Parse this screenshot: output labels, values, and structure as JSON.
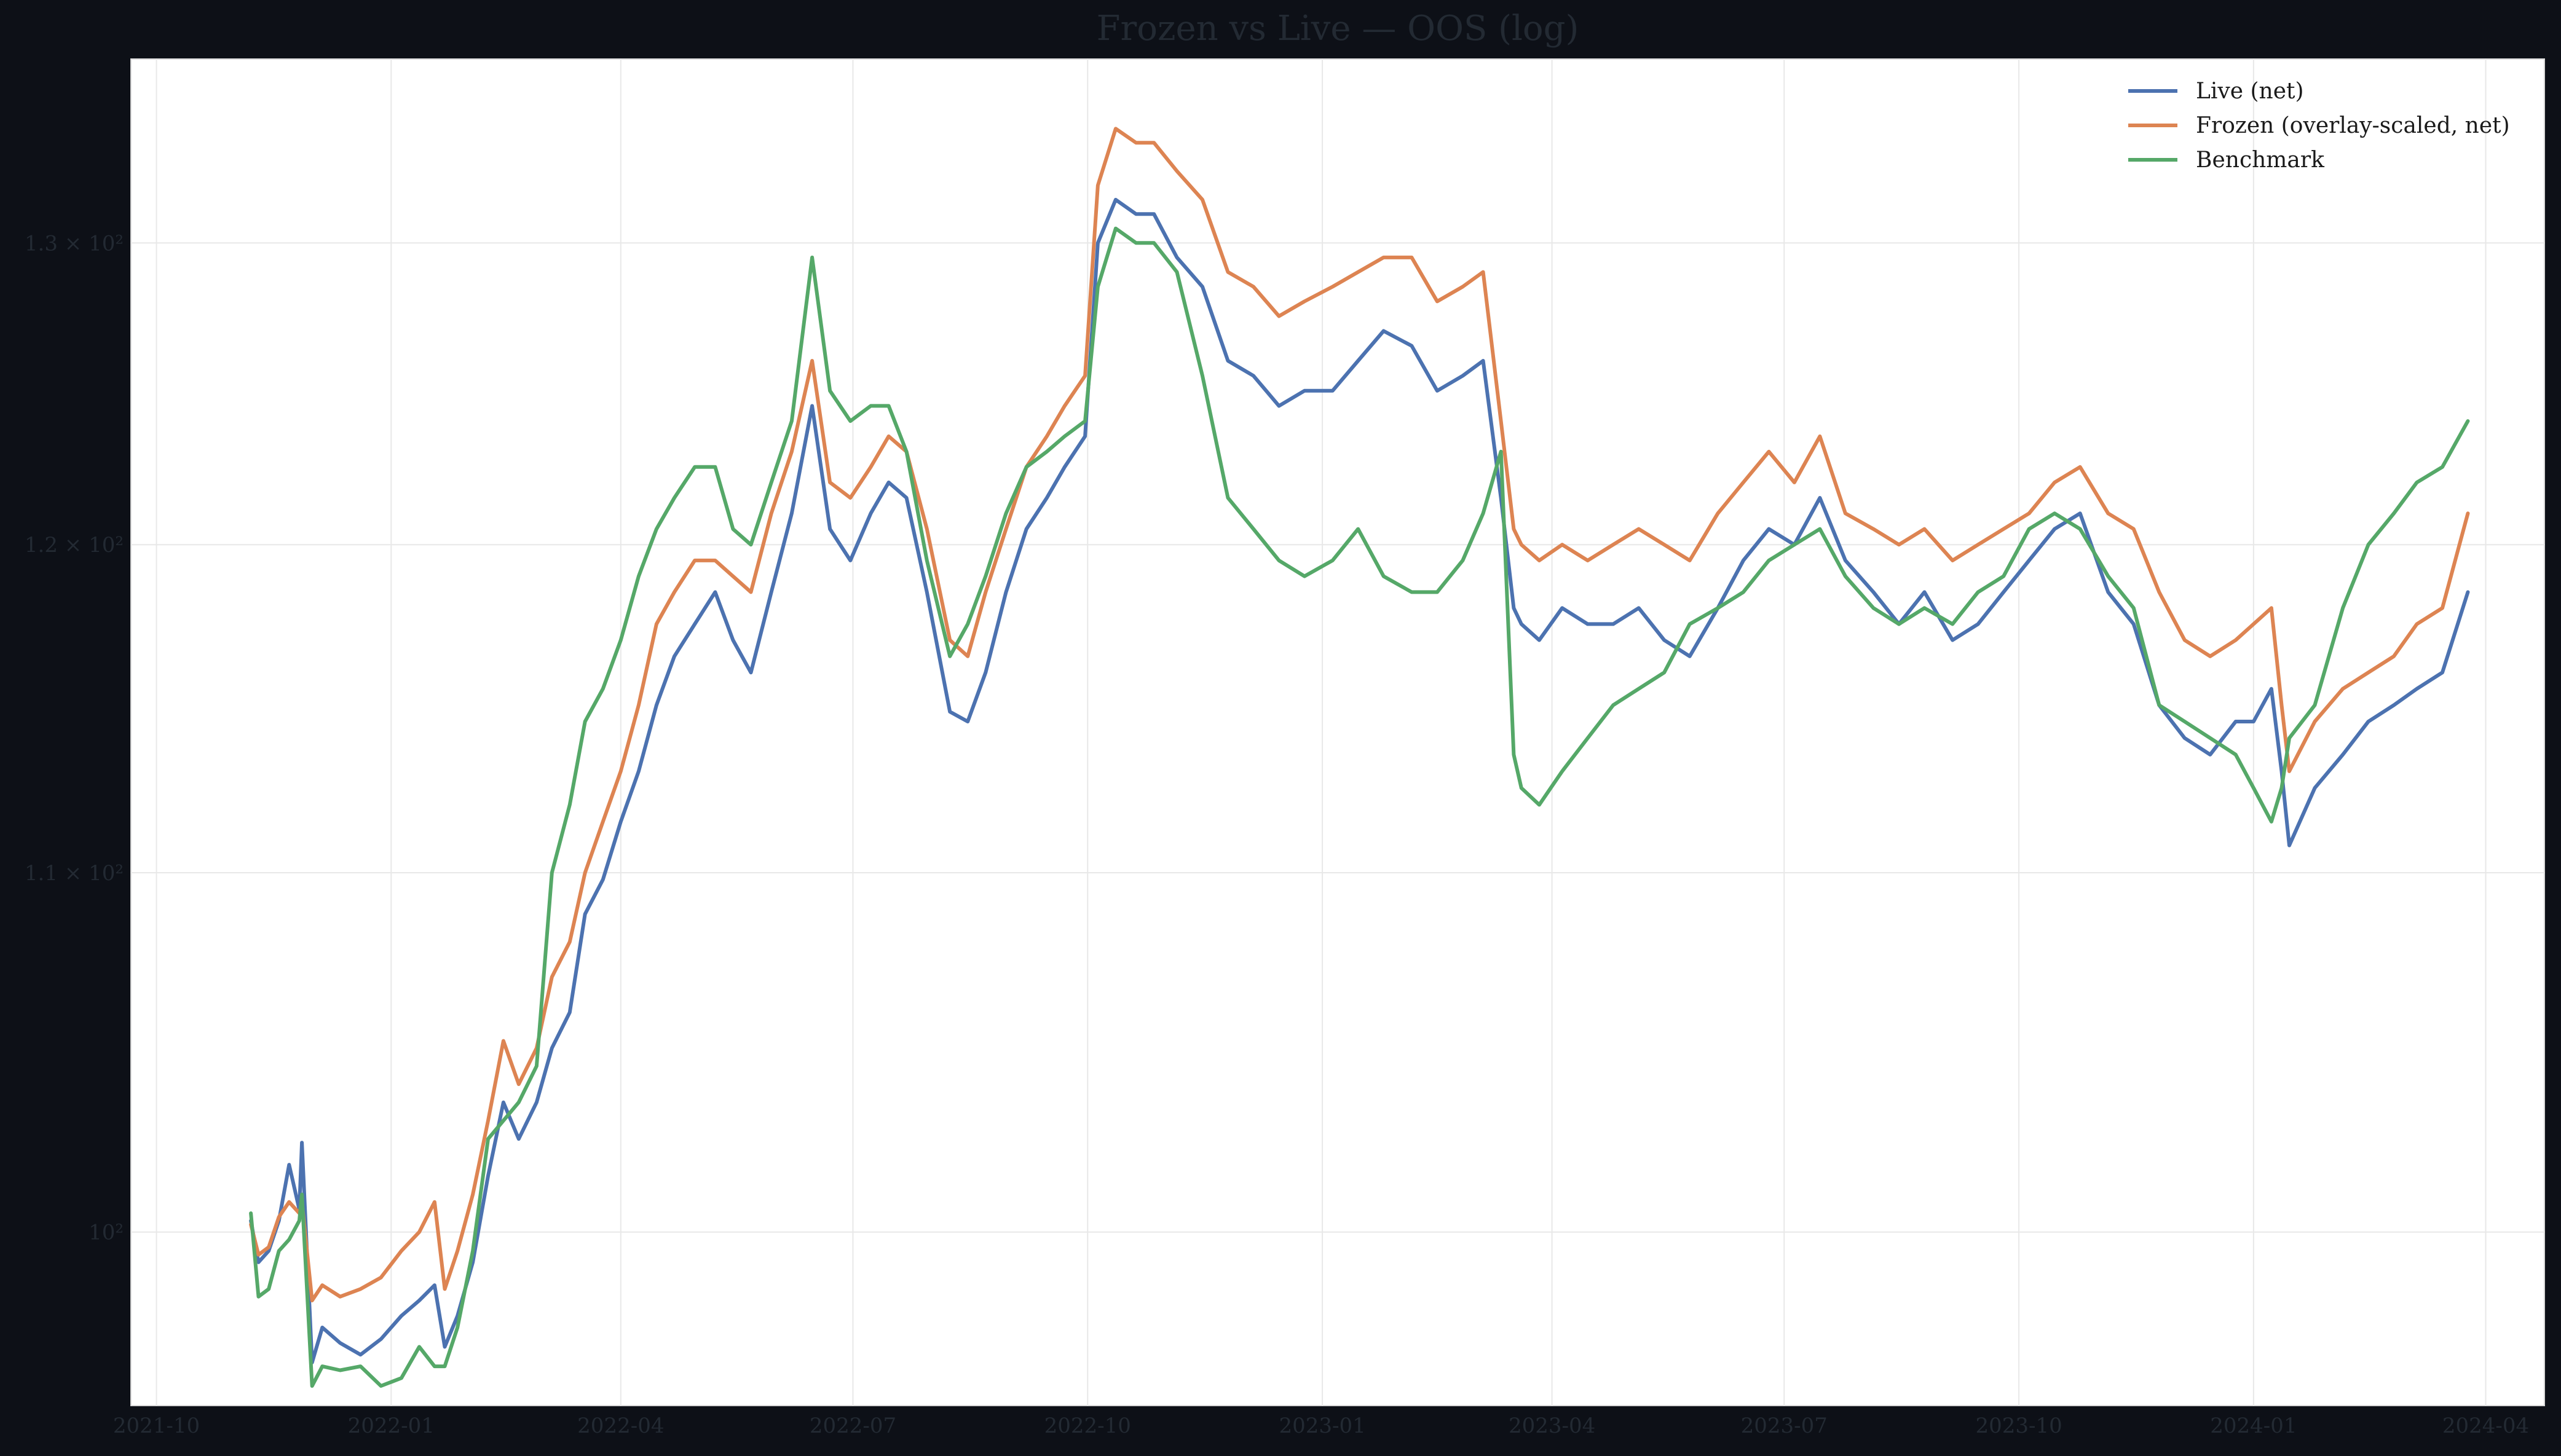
{
  "chart_data": {
    "type": "line",
    "title": "Frozen vs Live — OOS (log)",
    "xlabel": "",
    "ylabel": "",
    "y_scale": "log",
    "ylim": [
      95.5,
      136.5
    ],
    "xlim": [
      "2021-09-21",
      "2024-04-24"
    ],
    "grid": true,
    "legend_position": "top-right",
    "x_ticks": [
      "2021-10",
      "2022-01",
      "2022-04",
      "2022-07",
      "2022-10",
      "2023-01",
      "2023-04",
      "2023-07",
      "2023-10",
      "2024-01",
      "2024-04"
    ],
    "y_ticks": [
      {
        "value": 100,
        "label": "10²"
      },
      {
        "value": 110,
        "label": "1.1 × 10²"
      },
      {
        "value": 120,
        "label": "1.2 × 10²"
      },
      {
        "value": 130,
        "label": "1.3 × 10²"
      }
    ],
    "series": [
      {
        "name": "Live (net)",
        "color": "#4c72b0",
        "x": [
          "2021-11-07",
          "2021-11-10",
          "2021-11-14",
          "2021-11-18",
          "2021-11-22",
          "2021-11-26",
          "2021-11-27",
          "2021-12-01",
          "2021-12-05",
          "2021-12-12",
          "2021-12-20",
          "2021-12-28",
          "2022-01-05",
          "2022-01-12",
          "2022-01-18",
          "2022-01-22",
          "2022-01-27",
          "2022-02-02",
          "2022-02-08",
          "2022-02-14",
          "2022-02-20",
          "2022-02-27",
          "2022-03-05",
          "2022-03-12",
          "2022-03-18",
          "2022-03-25",
          "2022-04-01",
          "2022-04-08",
          "2022-04-15",
          "2022-04-22",
          "2022-04-30",
          "2022-05-08",
          "2022-05-15",
          "2022-05-22",
          "2022-05-30",
          "2022-06-07",
          "2022-06-15",
          "2022-06-22",
          "2022-06-30",
          "2022-07-08",
          "2022-07-15",
          "2022-07-22",
          "2022-07-30",
          "2022-08-08",
          "2022-08-15",
          "2022-08-22",
          "2022-08-30",
          "2022-09-07",
          "2022-09-15",
          "2022-09-22",
          "2022-09-30",
          "2022-10-05",
          "2022-10-12",
          "2022-10-20",
          "2022-10-27",
          "2022-11-05",
          "2022-11-15",
          "2022-11-25",
          "2022-12-05",
          "2022-12-15",
          "2022-12-25",
          "2023-01-05",
          "2023-01-15",
          "2023-01-25",
          "2023-02-05",
          "2023-02-15",
          "2023-02-25",
          "2023-03-05",
          "2023-03-12",
          "2023-03-17",
          "2023-03-20",
          "2023-03-27",
          "2023-04-05",
          "2023-04-15",
          "2023-04-25",
          "2023-05-05",
          "2023-05-15",
          "2023-05-25",
          "2023-06-05",
          "2023-06-15",
          "2023-06-25",
          "2023-07-05",
          "2023-07-15",
          "2023-07-25",
          "2023-08-05",
          "2023-08-15",
          "2023-08-25",
          "2023-09-05",
          "2023-09-15",
          "2023-09-25",
          "2023-10-05",
          "2023-10-15",
          "2023-10-25",
          "2023-11-05",
          "2023-11-15",
          "2023-11-25",
          "2023-12-05",
          "2023-12-15",
          "2023-12-25",
          "2024-01-01",
          "2024-01-08",
          "2024-01-12",
          "2024-01-15",
          "2024-01-25",
          "2024-02-05",
          "2024-02-15",
          "2024-02-25",
          "2024-03-05",
          "2024-03-15",
          "2024-03-25"
        ],
        "values": [
          100.3,
          99.2,
          99.5,
          100.3,
          101.8,
          100.6,
          102.4,
          96.6,
          97.5,
          97.1,
          96.8,
          97.2,
          97.8,
          98.2,
          98.6,
          97.0,
          97.8,
          99.2,
          101.5,
          103.5,
          102.5,
          103.5,
          105.0,
          106.0,
          108.8,
          109.8,
          111.5,
          113.0,
          115.0,
          116.5,
          117.5,
          118.5,
          117.0,
          116.0,
          118.5,
          121.0,
          124.5,
          120.5,
          119.5,
          121.0,
          122.0,
          121.5,
          118.5,
          114.8,
          114.5,
          116.0,
          118.5,
          120.5,
          121.5,
          122.5,
          123.5,
          130.0,
          131.5,
          131.0,
          131.0,
          129.5,
          128.5,
          126.0,
          125.5,
          124.5,
          125.0,
          125.0,
          126.0,
          127.0,
          126.5,
          125.0,
          125.5,
          126.0,
          121.5,
          118.0,
          117.5,
          117.0,
          118.0,
          117.5,
          117.5,
          118.0,
          117.0,
          116.5,
          118.0,
          119.5,
          120.5,
          120.0,
          121.5,
          119.5,
          118.5,
          117.5,
          118.5,
          117.0,
          117.5,
          118.5,
          119.5,
          120.5,
          121.0,
          118.5,
          117.5,
          115.0,
          114.0,
          113.5,
          114.5,
          114.5,
          115.5,
          113.0,
          110.8,
          112.5,
          113.5,
          114.5,
          115.0,
          115.5,
          116.0,
          118.5
        ]
      },
      {
        "name": "Frozen (overlay-scaled, net)",
        "color": "#dd8452",
        "x": [
          "2021-11-07",
          "2021-11-10",
          "2021-11-14",
          "2021-11-18",
          "2021-11-22",
          "2021-11-26",
          "2021-11-27",
          "2021-12-01",
          "2021-12-05",
          "2021-12-12",
          "2021-12-20",
          "2021-12-28",
          "2022-01-05",
          "2022-01-12",
          "2022-01-18",
          "2022-01-22",
          "2022-01-27",
          "2022-02-02",
          "2022-02-08",
          "2022-02-14",
          "2022-02-20",
          "2022-02-27",
          "2022-03-05",
          "2022-03-12",
          "2022-03-18",
          "2022-03-25",
          "2022-04-01",
          "2022-04-08",
          "2022-04-15",
          "2022-04-22",
          "2022-04-30",
          "2022-05-08",
          "2022-05-15",
          "2022-05-22",
          "2022-05-30",
          "2022-06-07",
          "2022-06-15",
          "2022-06-22",
          "2022-06-30",
          "2022-07-08",
          "2022-07-15",
          "2022-07-22",
          "2022-07-30",
          "2022-08-08",
          "2022-08-15",
          "2022-08-22",
          "2022-08-30",
          "2022-09-07",
          "2022-09-15",
          "2022-09-22",
          "2022-09-30",
          "2022-10-05",
          "2022-10-12",
          "2022-10-20",
          "2022-10-27",
          "2022-11-05",
          "2022-11-15",
          "2022-11-25",
          "2022-12-05",
          "2022-12-15",
          "2022-12-25",
          "2023-01-05",
          "2023-01-15",
          "2023-01-25",
          "2023-02-05",
          "2023-02-15",
          "2023-02-25",
          "2023-03-05",
          "2023-03-12",
          "2023-03-17",
          "2023-03-20",
          "2023-03-27",
          "2023-04-05",
          "2023-04-15",
          "2023-04-25",
          "2023-05-05",
          "2023-05-15",
          "2023-05-25",
          "2023-06-05",
          "2023-06-15",
          "2023-06-25",
          "2023-07-05",
          "2023-07-15",
          "2023-07-25",
          "2023-08-05",
          "2023-08-15",
          "2023-08-25",
          "2023-09-05",
          "2023-09-15",
          "2023-09-25",
          "2023-10-05",
          "2023-10-15",
          "2023-10-25",
          "2023-11-05",
          "2023-11-15",
          "2023-11-25",
          "2023-12-05",
          "2023-12-15",
          "2023-12-25",
          "2024-01-01",
          "2024-01-08",
          "2024-01-12",
          "2024-01-15",
          "2024-01-25",
          "2024-02-05",
          "2024-02-15",
          "2024-02-25",
          "2024-03-05",
          "2024-03-15",
          "2024-03-25"
        ],
        "values": [
          100.2,
          99.4,
          99.6,
          100.4,
          100.8,
          100.5,
          100.8,
          98.2,
          98.6,
          98.3,
          98.5,
          98.8,
          99.5,
          100.0,
          100.8,
          98.5,
          99.5,
          101.0,
          103.0,
          105.2,
          104.0,
          105.0,
          107.0,
          108.0,
          110.0,
          111.5,
          113.0,
          115.0,
          117.5,
          118.5,
          119.5,
          119.5,
          119.0,
          118.5,
          121.0,
          123.0,
          126.0,
          122.0,
          121.5,
          122.5,
          123.5,
          123.0,
          120.5,
          117.0,
          116.5,
          118.5,
          120.5,
          122.5,
          123.5,
          124.5,
          125.5,
          132.0,
          134.0,
          133.5,
          133.5,
          132.5,
          131.5,
          129.0,
          128.5,
          127.5,
          128.0,
          128.5,
          129.0,
          129.5,
          129.5,
          128.0,
          128.5,
          129.0,
          124.0,
          120.5,
          120.0,
          119.5,
          120.0,
          119.5,
          120.0,
          120.5,
          120.0,
          119.5,
          121.0,
          122.0,
          123.0,
          122.0,
          123.5,
          121.0,
          120.5,
          120.0,
          120.5,
          119.5,
          120.0,
          120.5,
          121.0,
          122.0,
          122.5,
          121.0,
          120.5,
          118.5,
          117.0,
          116.5,
          117.0,
          117.5,
          118.0,
          115.0,
          113.0,
          114.5,
          115.5,
          116.0,
          116.5,
          117.5,
          118.0,
          121.0
        ]
      },
      {
        "name": "Benchmark",
        "color": "#55a868",
        "x": [
          "2021-11-07",
          "2021-11-10",
          "2021-11-14",
          "2021-11-18",
          "2021-11-22",
          "2021-11-26",
          "2021-11-27",
          "2021-12-01",
          "2021-12-05",
          "2021-12-12",
          "2021-12-20",
          "2021-12-28",
          "2022-01-05",
          "2022-01-12",
          "2022-01-18",
          "2022-01-22",
          "2022-01-27",
          "2022-02-02",
          "2022-02-08",
          "2022-02-14",
          "2022-02-20",
          "2022-02-27",
          "2022-03-05",
          "2022-03-12",
          "2022-03-18",
          "2022-03-25",
          "2022-04-01",
          "2022-04-08",
          "2022-04-15",
          "2022-04-22",
          "2022-04-30",
          "2022-05-08",
          "2022-05-15",
          "2022-05-22",
          "2022-05-30",
          "2022-06-07",
          "2022-06-15",
          "2022-06-22",
          "2022-06-30",
          "2022-07-08",
          "2022-07-15",
          "2022-07-22",
          "2022-07-30",
          "2022-08-08",
          "2022-08-15",
          "2022-08-22",
          "2022-08-30",
          "2022-09-07",
          "2022-09-15",
          "2022-09-22",
          "2022-09-30",
          "2022-10-05",
          "2022-10-12",
          "2022-10-20",
          "2022-10-27",
          "2022-11-05",
          "2022-11-15",
          "2022-11-25",
          "2022-12-05",
          "2022-12-15",
          "2022-12-25",
          "2023-01-05",
          "2023-01-15",
          "2023-01-25",
          "2023-02-05",
          "2023-02-15",
          "2023-02-25",
          "2023-03-05",
          "2023-03-12",
          "2023-03-17",
          "2023-03-20",
          "2023-03-27",
          "2023-04-05",
          "2023-04-15",
          "2023-04-25",
          "2023-05-05",
          "2023-05-15",
          "2023-05-25",
          "2023-06-05",
          "2023-06-15",
          "2023-06-25",
          "2023-07-05",
          "2023-07-15",
          "2023-07-25",
          "2023-08-05",
          "2023-08-15",
          "2023-08-25",
          "2023-09-05",
          "2023-09-15",
          "2023-09-25",
          "2023-10-05",
          "2023-10-15",
          "2023-10-25",
          "2023-11-05",
          "2023-11-15",
          "2023-11-25",
          "2023-12-05",
          "2023-12-15",
          "2023-12-25",
          "2024-01-01",
          "2024-01-08",
          "2024-01-12",
          "2024-01-15",
          "2024-01-25",
          "2024-02-05",
          "2024-02-15",
          "2024-02-25",
          "2024-03-05",
          "2024-03-15",
          "2024-03-25"
        ],
        "values": [
          100.5,
          98.3,
          98.5,
          99.5,
          99.8,
          100.3,
          101.0,
          96.0,
          96.5,
          96.4,
          96.5,
          96.0,
          96.2,
          97.0,
          96.5,
          96.5,
          97.5,
          99.5,
          102.5,
          103.0,
          103.5,
          104.5,
          110.0,
          112.0,
          114.5,
          115.5,
          117.0,
          119.0,
          120.5,
          121.5,
          122.5,
          122.5,
          120.5,
          120.0,
          122.0,
          124.0,
          129.5,
          125.0,
          124.0,
          124.5,
          124.5,
          123.0,
          119.5,
          116.5,
          117.5,
          119.0,
          121.0,
          122.5,
          123.0,
          123.5,
          124.0,
          128.5,
          130.5,
          130.0,
          130.0,
          129.0,
          125.5,
          121.5,
          120.5,
          119.5,
          119.0,
          119.5,
          120.5,
          119.0,
          118.5,
          118.5,
          119.5,
          121.0,
          123.0,
          113.5,
          112.5,
          112.0,
          113.0,
          114.0,
          115.0,
          115.5,
          116.0,
          117.5,
          118.0,
          118.5,
          119.5,
          120.0,
          120.5,
          119.0,
          118.0,
          117.5,
          118.0,
          117.5,
          118.5,
          119.0,
          120.5,
          121.0,
          120.5,
          119.0,
          118.0,
          115.0,
          114.5,
          114.0,
          113.5,
          112.5,
          111.5,
          112.5,
          114.0,
          115.0,
          118.0,
          120.0,
          121.0,
          122.0,
          122.5,
          124.0
        ]
      }
    ]
  }
}
